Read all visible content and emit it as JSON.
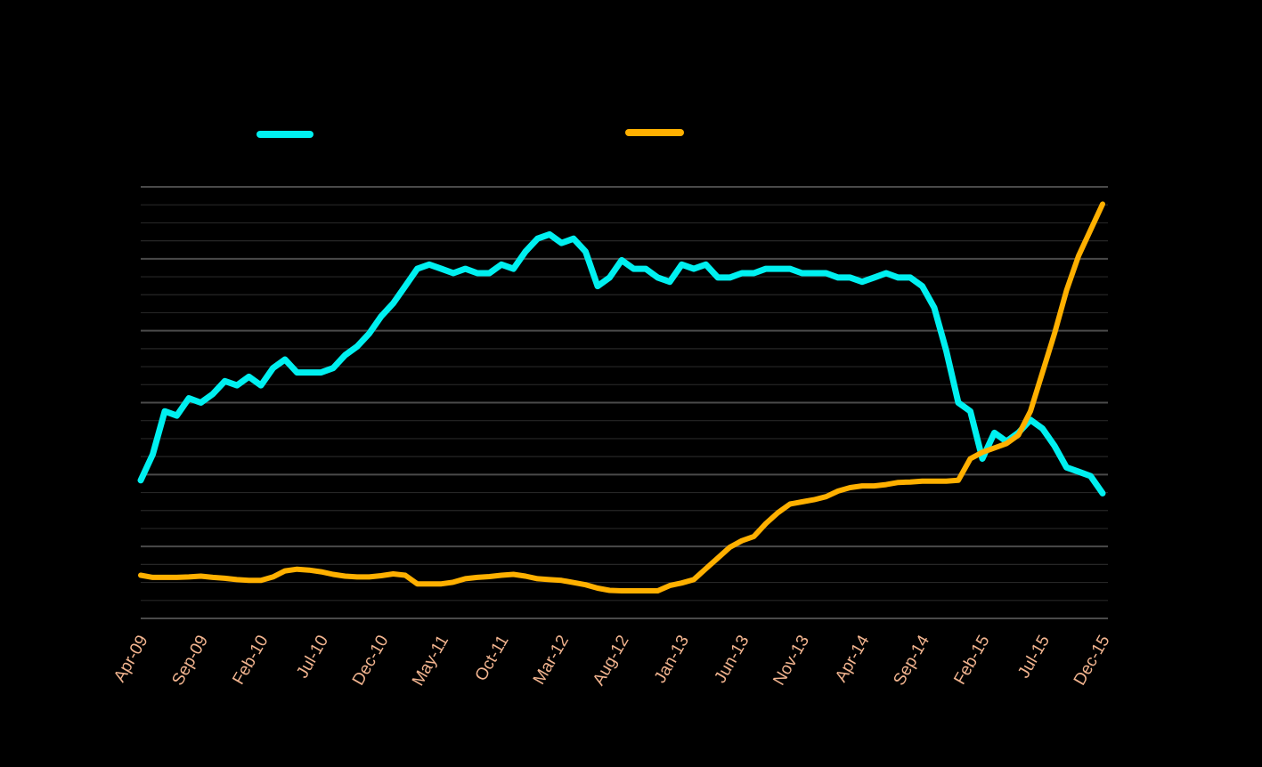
{
  "chart_data": {
    "type": "line",
    "title": "",
    "xlabel": "",
    "ylabel": "",
    "y_axis_visible": false,
    "grid": true,
    "grid_color": "#3a3a3a",
    "legend_placement": "top",
    "background": "#000000",
    "tick_label_color": "#f2b48f",
    "x_tick_labels": [
      "Apr-09",
      "Sep-09",
      "Feb-10",
      "Jul-10",
      "Dec-10",
      "May-11",
      "Oct-11",
      "Mar-12",
      "Aug-12",
      "Jan-13",
      "Jun-13",
      "Nov-13",
      "Apr-14",
      "Sep-14",
      "Feb-15",
      "Jul-15",
      "Dec-15"
    ],
    "x_tick_start_index": 0,
    "x_tick_step": 5,
    "ylim": [
      0,
      100
    ],
    "x": [
      "Apr-09",
      "May-09",
      "Jun-09",
      "Jul-09",
      "Aug-09",
      "Sep-09",
      "Oct-09",
      "Nov-09",
      "Dec-09",
      "Jan-10",
      "Feb-10",
      "Mar-10",
      "Apr-10",
      "May-10",
      "Jun-10",
      "Jul-10",
      "Aug-10",
      "Sep-10",
      "Oct-10",
      "Nov-10",
      "Dec-10",
      "Jan-11",
      "Feb-11",
      "Mar-11",
      "Apr-11",
      "May-11",
      "Jun-11",
      "Jul-11",
      "Aug-11",
      "Sep-11",
      "Oct-11",
      "Nov-11",
      "Dec-11",
      "Jan-12",
      "Feb-12",
      "Mar-12",
      "Apr-12",
      "May-12",
      "Jun-12",
      "Jul-12",
      "Aug-12",
      "Sep-12",
      "Oct-12",
      "Nov-12",
      "Dec-12",
      "Jan-13",
      "Feb-13",
      "Mar-13",
      "Apr-13",
      "May-13",
      "Jun-13",
      "Jul-13",
      "Aug-13",
      "Sep-13",
      "Oct-13",
      "Nov-13",
      "Dec-13",
      "Jan-14",
      "Feb-14",
      "Mar-14",
      "Apr-14",
      "May-14",
      "Jun-14",
      "Jul-14",
      "Aug-14",
      "Sep-14",
      "Oct-14",
      "Nov-14",
      "Dec-14",
      "Jan-15",
      "Feb-15",
      "Mar-15",
      "Apr-15",
      "May-15",
      "Jun-15",
      "Jul-15",
      "Aug-15",
      "Sep-15",
      "Oct-15",
      "Nov-15",
      "Dec-15"
    ],
    "series": [
      {
        "color": "#00f0f0",
        "values": [
          32,
          38,
          48,
          47,
          51,
          50,
          52,
          55,
          54,
          56,
          54,
          58,
          60,
          57,
          57,
          57,
          58,
          61,
          63,
          66,
          70,
          73,
          77,
          81,
          82,
          81,
          80,
          81,
          80,
          80,
          82,
          81,
          85,
          88,
          89,
          87,
          88,
          85,
          77,
          79,
          83,
          81,
          81,
          79,
          78,
          82,
          81,
          82,
          79,
          79,
          80,
          80,
          81,
          81,
          81,
          80,
          80,
          80,
          79,
          79,
          78,
          79,
          80,
          79,
          79,
          77,
          72,
          62,
          50,
          48,
          37,
          43,
          41,
          43,
          46,
          44,
          40,
          35,
          34,
          33,
          29
        ],
        "line_width": 7
      },
      {
        "color": "#ffb000",
        "values": [
          10,
          9.5,
          9.5,
          9.5,
          9.6,
          9.8,
          9.5,
          9.3,
          9,
          8.8,
          8.8,
          9.6,
          11,
          11.4,
          11.2,
          10.8,
          10.2,
          9.8,
          9.6,
          9.6,
          9.9,
          10.3,
          10,
          8,
          8,
          8,
          8.4,
          9.2,
          9.5,
          9.7,
          10,
          10.2,
          9.8,
          9.2,
          9,
          8.8,
          8.3,
          7.8,
          7,
          6.5,
          6.4,
          6.4,
          6.4,
          6.4,
          7.6,
          8.2,
          9,
          11.5,
          14,
          16.5,
          18,
          19,
          22,
          24.5,
          26.5,
          27,
          27.5,
          28.2,
          29.5,
          30.3,
          30.7,
          30.7,
          31,
          31.5,
          31.6,
          31.8,
          31.8,
          31.8,
          32,
          37,
          38.5,
          39.5,
          40.5,
          42.5,
          48,
          57,
          66,
          76,
          84,
          90,
          96
        ],
        "line_width": 6
      }
    ]
  }
}
